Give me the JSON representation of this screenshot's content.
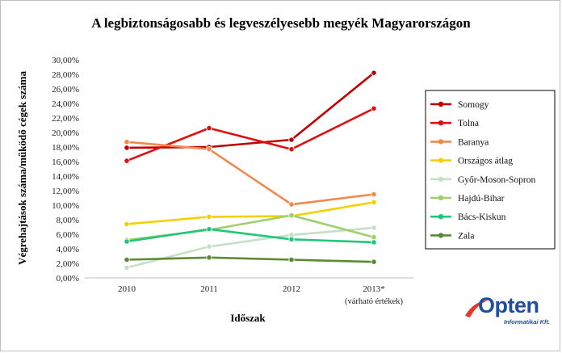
{
  "chart_data": {
    "type": "line",
    "title": "A legbiztonságosabb és legveszélyesebb megyék Magyarországon",
    "xlabel": "Időszak",
    "ylabel": "Végrehajtások száma/működő cégek száma",
    "categories": [
      "2010",
      "2011",
      "2012",
      "2013*"
    ],
    "category_note": "(várható értékek)",
    "ylim": [
      0,
      30
    ],
    "ytick_step": 2,
    "ytick_labels": [
      "0,00%",
      "2,00%",
      "4,00%",
      "6,00%",
      "8,00%",
      "10,00%",
      "12,00%",
      "14,00%",
      "16,00%",
      "18,00%",
      "20,00%",
      "22,00%",
      "24,00%",
      "26,00%",
      "28,00%",
      "30,00%"
    ],
    "grid": false,
    "legend_position": "right",
    "series": [
      {
        "name": "Somogy",
        "color": "#c00000",
        "values": [
          17.9,
          18.0,
          19.0,
          28.2
        ]
      },
      {
        "name": "Tolna",
        "color": "#e01010",
        "values": [
          16.1,
          20.6,
          17.7,
          23.3
        ]
      },
      {
        "name": "Baranya",
        "color": "#f0894a",
        "values": [
          18.7,
          17.7,
          10.1,
          11.5
        ]
      },
      {
        "name": "Országos átlag",
        "color": "#f5d000",
        "values": [
          7.4,
          8.4,
          8.5,
          10.4
        ]
      },
      {
        "name": "Győr-Moson-Sopron",
        "color": "#c5e0c5",
        "values": [
          1.4,
          4.3,
          5.9,
          6.9
        ]
      },
      {
        "name": "Hajdú-Bihar",
        "color": "#9fcf6a",
        "values": [
          5.2,
          6.6,
          8.6,
          5.6
        ]
      },
      {
        "name": "Bács-Kiskun",
        "color": "#1ec878",
        "values": [
          5.0,
          6.7,
          5.3,
          4.9
        ]
      },
      {
        "name": "Zala",
        "color": "#5a8a32",
        "values": [
          2.5,
          2.8,
          2.5,
          2.2
        ]
      }
    ]
  },
  "logo": {
    "word": "Opten",
    "sub": "Informatikai Kft."
  }
}
